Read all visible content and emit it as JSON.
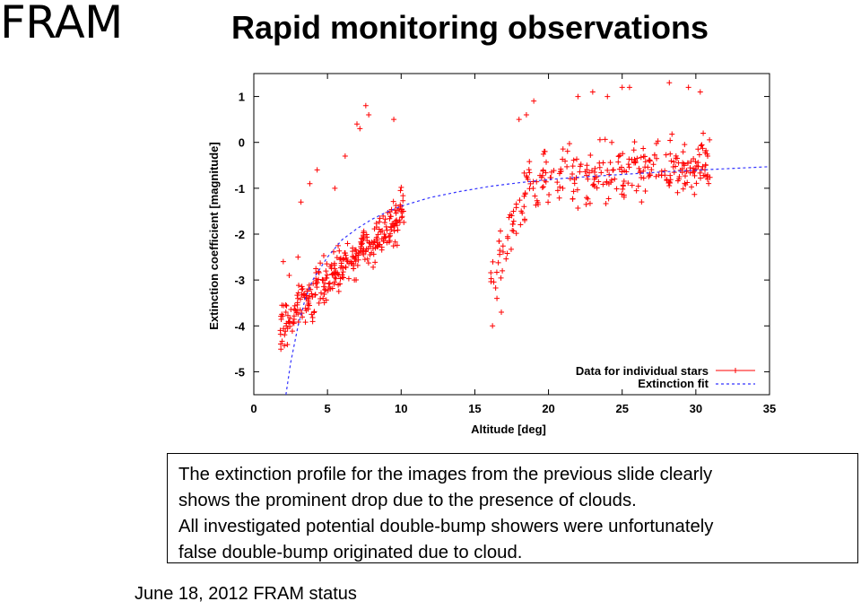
{
  "app_name": "FRAM",
  "slide_title": "Rapid monitoring observations",
  "chart_data": {
    "type": "scatter",
    "xlabel": "Altitude [deg]",
    "ylabel": "Extinction coefficient [magnitude]",
    "xlim": [
      0,
      35
    ],
    "ylim": [
      -5.5,
      1.5
    ],
    "x_ticks": [
      "0",
      "5",
      "10",
      "15",
      "20",
      "25",
      "30",
      "35"
    ],
    "y_ticks": [
      "1",
      "0",
      "-1",
      "-2",
      "-3",
      "-4",
      "-5"
    ],
    "legend_position": "bottom-right",
    "series": [
      {
        "name": "Data for individual stars",
        "kind": "points",
        "color": "#ff0000",
        "marker": "plus",
        "clusters": [
          {
            "x_range": [
              1.8,
              10.2
            ],
            "y_center_at_x0": -4.0,
            "slope": 0.3,
            "spread": 0.35,
            "count": 320
          },
          {
            "x_range": [
              16.0,
              18.5
            ],
            "y_center_at_x0": -3.0,
            "slope": 0.75,
            "spread": 0.45,
            "count": 45
          },
          {
            "x_range": [
              18.5,
              31.0
            ],
            "y_center_at_x0": -0.9,
            "slope": 0.035,
            "spread": 0.45,
            "count": 260
          }
        ],
        "points": [
          [
            1.8,
            -4.1
          ],
          [
            2.2,
            -4.0
          ],
          [
            2.0,
            -2.6
          ],
          [
            2.4,
            -2.9
          ],
          [
            3.0,
            -2.5
          ],
          [
            3.2,
            -1.3
          ],
          [
            3.8,
            -0.9
          ],
          [
            4.3,
            -0.6
          ],
          [
            4.7,
            -3.0
          ],
          [
            5.5,
            -1.0
          ],
          [
            6.2,
            -0.3
          ],
          [
            7.0,
            0.4
          ],
          [
            7.2,
            0.3
          ],
          [
            7.6,
            0.8
          ],
          [
            7.8,
            0.6
          ],
          [
            9.5,
            0.5
          ],
          [
            16.2,
            -4.0
          ],
          [
            16.5,
            -3.4
          ],
          [
            16.8,
            -3.7
          ],
          [
            18.0,
            0.5
          ],
          [
            18.5,
            0.6
          ],
          [
            19.0,
            0.9
          ],
          [
            22.0,
            1.0
          ],
          [
            23.0,
            1.1
          ],
          [
            24.0,
            1.0
          ],
          [
            25.0,
            1.2
          ],
          [
            25.5,
            1.2
          ],
          [
            28.2,
            1.3
          ],
          [
            29.5,
            1.2
          ],
          [
            30.3,
            1.1
          ],
          [
            30.5,
            0.2
          ],
          [
            30.8,
            -0.3
          ]
        ]
      },
      {
        "name": "Extinction fit",
        "kind": "fit",
        "color": "#3333ff",
        "style": "dashed",
        "fit_points": [
          [
            2.18,
            -5.5
          ],
          [
            2.5,
            -4.8
          ],
          [
            3,
            -4.0
          ],
          [
            3.5,
            -3.4
          ],
          [
            4,
            -3.0
          ],
          [
            5,
            -2.5
          ],
          [
            6,
            -2.12
          ],
          [
            7,
            -1.88
          ],
          [
            8,
            -1.68
          ],
          [
            9,
            -1.52
          ],
          [
            10,
            -1.39
          ],
          [
            12,
            -1.2
          ],
          [
            14,
            -1.07
          ],
          [
            16,
            -0.96
          ],
          [
            18,
            -0.88
          ],
          [
            20,
            -0.81
          ],
          [
            22,
            -0.76
          ],
          [
            25,
            -0.7
          ],
          [
            28,
            -0.64
          ],
          [
            31,
            -0.59
          ],
          [
            35,
            -0.53
          ]
        ]
      }
    ]
  },
  "note_lines": [
    "The extinction profile for the images from the previous slide clearly",
    "shows the prominent drop due to the presence of clouds.",
    "All investigated potential double-bump showers were unfortunately",
    "false double-bump originated due to cloud."
  ],
  "footer": "June 18, 2012  FRAM status"
}
